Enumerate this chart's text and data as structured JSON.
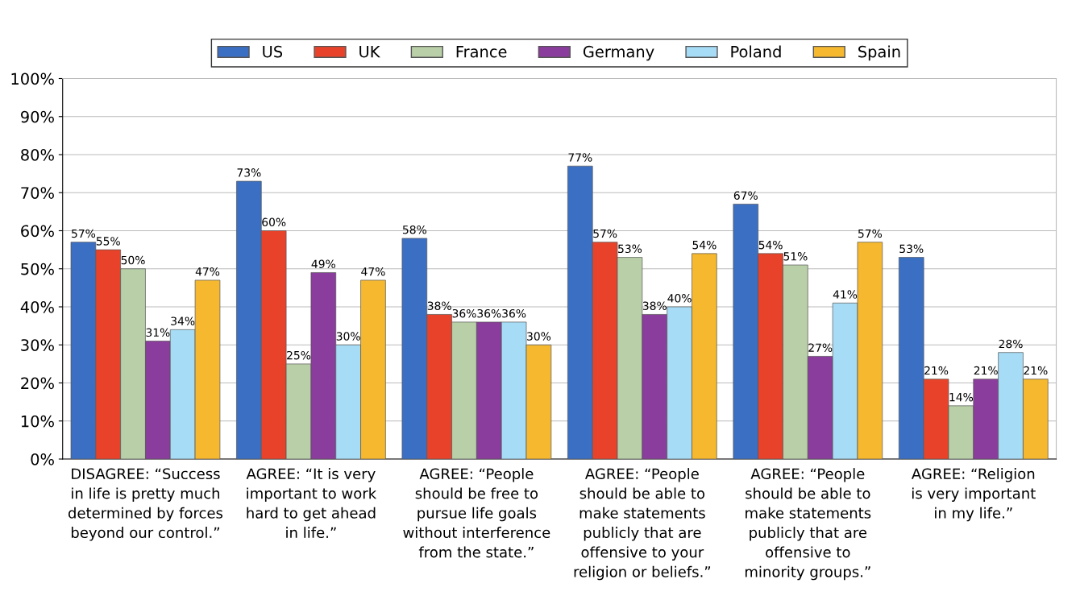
{
  "chart_data": {
    "type": "bar",
    "categories": [
      "DISAGREE: “Success\nin life is pretty much\ndetermined by forces\nbeyond our control.”",
      "AGREE: “It is very\nimportant to work\nhard to get ahead\nin life.”",
      "AGREE: “People\nshould be free to\npursue life goals\nwithout interference\nfrom the state.”",
      "AGREE: “People\nshould be able to\nmake statements\npublicly that are\noffensive to your\nreligion or beliefs.”",
      "AGREE: “People\nshould be able to\nmake statements\npublicly that are\noffensive to\nminority groups.”",
      "AGREE: “Religion\nis very important\nin my life.”"
    ],
    "series": [
      {
        "name": "US",
        "color": "#3a6fc4",
        "values": [
          57,
          73,
          58,
          77,
          67,
          53
        ],
        "value_labels": [
          "57%",
          "73%",
          "58%",
          "77%",
          "67%",
          "53%"
        ]
      },
      {
        "name": "UK",
        "color": "#e8432a",
        "values": [
          55,
          60,
          38,
          57,
          54,
          21
        ],
        "value_labels": [
          "55%",
          "60%",
          "38%",
          "57%",
          "54%",
          "21%"
        ]
      },
      {
        "name": "France",
        "color": "#b8cfa8",
        "values": [
          50,
          25,
          36,
          53,
          51,
          14
        ],
        "value_labels": [
          "50%",
          "25%",
          "36%",
          "53%",
          "51%",
          "14%"
        ]
      },
      {
        "name": "Germany",
        "color": "#8a3d9c",
        "values": [
          31,
          49,
          36,
          38,
          27,
          21
        ],
        "value_labels": [
          "31%",
          "49%",
          "36%",
          "38%",
          "27%",
          "21%"
        ]
      },
      {
        "name": "Poland",
        "color": "#a6dcf5",
        "values": [
          34,
          30,
          36,
          40,
          41,
          28
        ],
        "value_labels": [
          "34%",
          "30%",
          "36%",
          "40%",
          "41%",
          "28%"
        ]
      },
      {
        "name": "Spain",
        "color": "#f5b82e",
        "values": [
          47,
          47,
          30,
          54,
          57,
          21
        ],
        "value_labels": [
          "47%",
          "47%",
          "30%",
          "54%",
          "57%",
          "21%"
        ]
      }
    ],
    "ylim": [
      0,
      100
    ],
    "yticks": [
      {
        "value": 0,
        "label": "0%"
      },
      {
        "value": 10,
        "label": "10%"
      },
      {
        "value": 20,
        "label": "20%"
      },
      {
        "value": 30,
        "label": "30%"
      },
      {
        "value": 40,
        "label": "40%"
      },
      {
        "value": 50,
        "label": "50%"
      },
      {
        "value": 60,
        "label": "60%"
      },
      {
        "value": 70,
        "label": "70%"
      },
      {
        "value": 80,
        "label": "80%"
      },
      {
        "value": 90,
        "label": "90%"
      },
      {
        "value": 100,
        "label": "100%"
      }
    ],
    "grid": "y",
    "legend": "top"
  }
}
